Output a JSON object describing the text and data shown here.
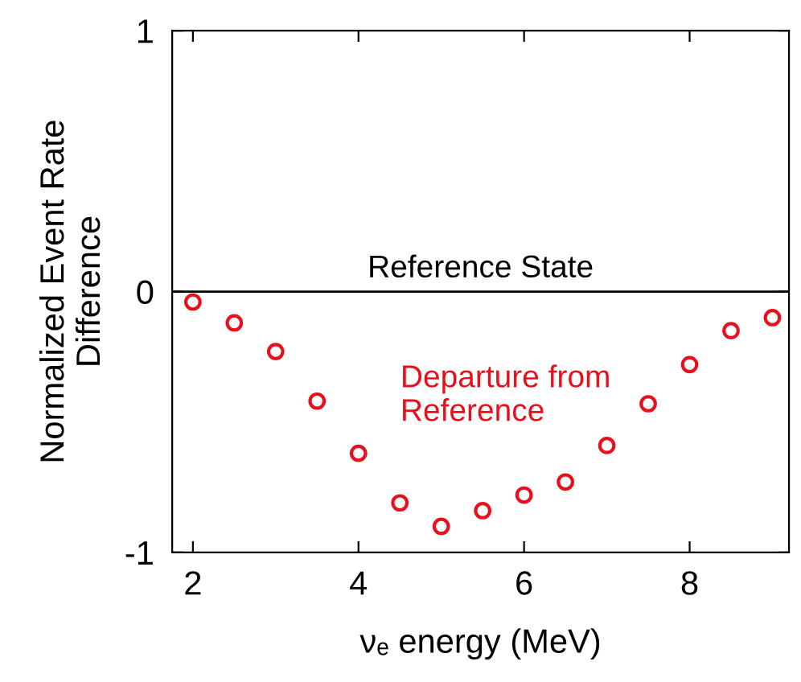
{
  "chart_data": {
    "type": "scatter",
    "xlabel": "νₑ energy (MeV)",
    "ylabel": "Normalized Event Rate\nDifference",
    "x": [
      2,
      2.5,
      3,
      3.5,
      4,
      4.5,
      5,
      5.5,
      6,
      6.5,
      7,
      7.5,
      8,
      8.5,
      9
    ],
    "series": [
      {
        "color": "#e8101c",
        "values": [
          -0.04,
          -0.12,
          -0.23,
          -0.42,
          -0.62,
          -0.81,
          -0.9,
          -0.84,
          -0.78,
          -0.73,
          -0.59,
          -0.43,
          -0.28,
          -0.15,
          -0.1
        ]
      }
    ],
    "marker": "circle",
    "xlim": [
      1.75,
      9.2
    ],
    "ylim": [
      -1,
      1
    ],
    "xticks": [
      2,
      4,
      6,
      8
    ],
    "yticks": [
      -1,
      0,
      1
    ],
    "ref_lines": [
      {
        "axis": "y",
        "value": 0,
        "label": "Reference State",
        "color": "#000000"
      }
    ],
    "annotations": [
      "Departure from\nReference"
    ],
    "grid": false,
    "legend": false
  }
}
